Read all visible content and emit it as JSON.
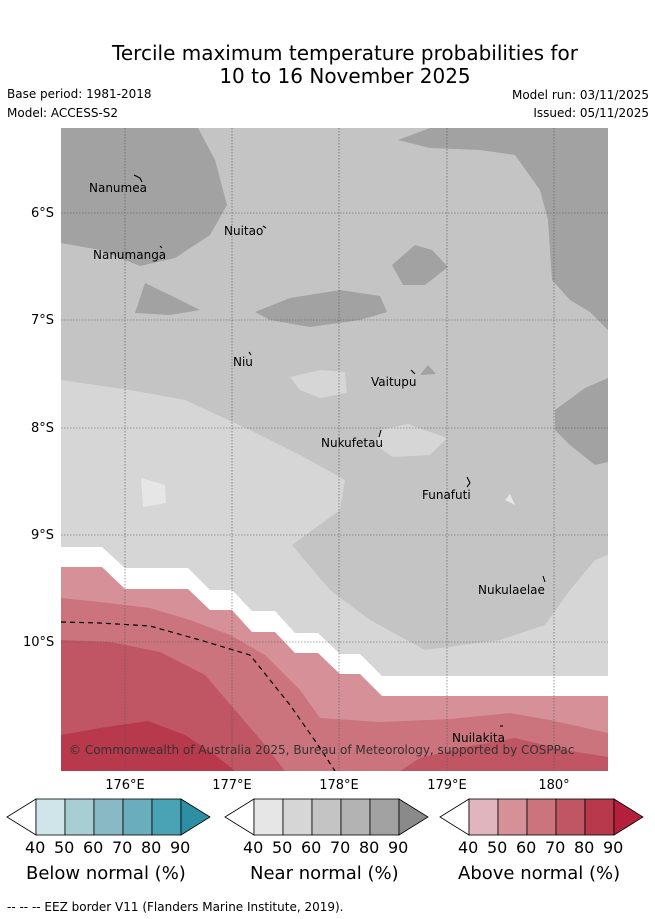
{
  "title": {
    "line1": "Tercile maximum temperature probabilities for",
    "line2": "10 to 16 November 2025"
  },
  "meta": {
    "base_period": "Base period: 1981-2018",
    "model": "Model: ACCESS-S2",
    "model_run": "Model run: 03/11/2025",
    "issued": "Issued: 05/11/2025"
  },
  "axes": {
    "lat_labels": [
      "6°S",
      "7°S",
      "8°S",
      "9°S",
      "10°S"
    ],
    "lon_labels": [
      "176°E",
      "177°E",
      "178°E",
      "179°E",
      "180°"
    ]
  },
  "islands": [
    "Nanumea",
    "Nuitao",
    "Nanumanga",
    "Niu",
    "Vaitupu",
    "Nukufetau",
    "Funafuti",
    "Nukulaelae",
    "Nuilakita"
  ],
  "copyright": "© Commonwealth of Australia 2025, Bureau of Meteorology, supported by COSPPac",
  "colorbars": [
    {
      "title": "Below normal (%)",
      "ticks": [
        "40",
        "50",
        "60",
        "70",
        "80",
        "90"
      ],
      "colors": [
        "#ffffff",
        "#cfe5ea",
        "#a8cdd3",
        "#88b9c4",
        "#6aaebd",
        "#4aa2b5",
        "#2e8fa4"
      ]
    },
    {
      "title": "Near normal (%)",
      "ticks": [
        "40",
        "50",
        "60",
        "70",
        "80",
        "90"
      ],
      "colors": [
        "#ffffff",
        "#e6e6e6",
        "#d6d6d6",
        "#c4c4c4",
        "#b3b3b3",
        "#a2a2a2",
        "#8a8a8a"
      ]
    },
    {
      "title": "Above normal (%)",
      "ticks": [
        "40",
        "50",
        "60",
        "70",
        "80",
        "90"
      ],
      "colors": [
        "#ffffff",
        "#e1b5bd",
        "#d69198",
        "#cb747d",
        "#c05664",
        "#b8384c",
        "#b41f3c"
      ]
    }
  ],
  "footer": "--  --  -- EEZ border V11 (Flanders Marine Institute, 2019)."
}
